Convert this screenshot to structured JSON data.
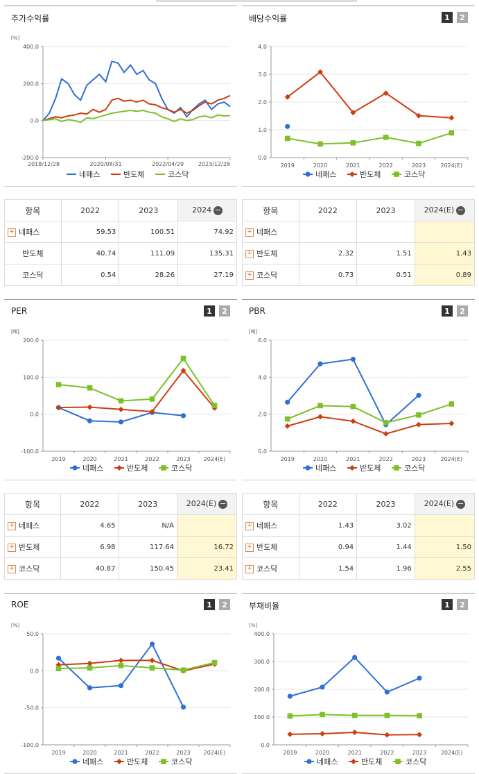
{
  "series_names": [
    "네패스",
    "반도체",
    "코스닥"
  ],
  "colors": {
    "s0": "#2f6fd6",
    "s1": "#cc3d10",
    "s2": "#7cc02a"
  },
  "pager": {
    "p1": "1",
    "p2": "2"
  },
  "stock": {
    "title": "주가수익률",
    "chart_data": {
      "type": "line",
      "unit": "[%]",
      "yticks": [
        "400.0",
        "200.0",
        "0.0",
        "-200.0"
      ],
      "ylim": [
        -200,
        400
      ],
      "xticks": [
        "2018/12/28",
        "2020/08/31",
        "2022/04/29",
        "2023/12/28"
      ],
      "x": [
        "2018-12-28",
        "2019-02-28",
        "2019-04-30",
        "2019-06-28",
        "2019-08-30",
        "2019-10-31",
        "2019-12-30",
        "2020-02-28",
        "2020-04-29",
        "2020-06-30",
        "2020-08-31",
        "2020-10-30",
        "2020-12-30",
        "2021-02-26",
        "2021-04-30",
        "2021-06-30",
        "2021-08-31",
        "2021-10-29",
        "2021-12-30",
        "2022-02-28",
        "2022-04-29",
        "2022-06-30",
        "2022-08-31",
        "2022-10-31",
        "2022-12-29",
        "2023-02-28",
        "2023-04-28",
        "2023-06-30",
        "2023-08-31",
        "2023-10-31",
        "2023-12-28"
      ],
      "series": [
        {
          "name": "네패스",
          "values": [
            0,
            40,
            120,
            225,
            200,
            140,
            110,
            190,
            220,
            250,
            210,
            320,
            310,
            260,
            300,
            250,
            270,
            220,
            200,
            120,
            60,
            40,
            70,
            20,
            60,
            90,
            110,
            60,
            90,
            100,
            75
          ]
        },
        {
          "name": "반도체",
          "values": [
            0,
            10,
            20,
            15,
            25,
            30,
            40,
            35,
            60,
            45,
            60,
            110,
            120,
            105,
            110,
            100,
            110,
            90,
            85,
            70,
            60,
            45,
            60,
            40,
            55,
            80,
            100,
            90,
            110,
            120,
            135
          ]
        },
        {
          "name": "코스닥",
          "values": [
            0,
            5,
            10,
            -5,
            5,
            0,
            -10,
            15,
            10,
            20,
            30,
            40,
            45,
            50,
            55,
            50,
            55,
            45,
            40,
            20,
            10,
            -5,
            10,
            0,
            5,
            20,
            25,
            15,
            30,
            25,
            27
          ]
        }
      ]
    }
  },
  "dividend": {
    "title": "배당수익률",
    "chart_data": {
      "type": "line",
      "ylim": [
        0,
        4
      ],
      "yticks": [
        "4.0",
        "3.0",
        "2.0",
        "1.0",
        "0.0"
      ],
      "categories": [
        "2019",
        "2020",
        "2021",
        "2022",
        "2023",
        "2024(E)"
      ],
      "series": [
        {
          "name": "네패스",
          "values": [
            1.12,
            null,
            null,
            null,
            null,
            null
          ]
        },
        {
          "name": "반도체",
          "values": [
            2.18,
            3.08,
            1.62,
            2.32,
            1.51,
            1.43
          ]
        },
        {
          "name": "코스닥",
          "values": [
            0.69,
            0.49,
            0.53,
            0.73,
            0.51,
            0.89
          ]
        }
      ]
    }
  },
  "stock_table": {
    "headers": [
      "항목",
      "2022",
      "2023",
      "2024"
    ],
    "rows": [
      {
        "label": "네패스",
        "plus": true,
        "cells": [
          "59.53",
          "100.51",
          "74.92"
        ]
      },
      {
        "label": "반도체",
        "plus": false,
        "cells": [
          "40.74",
          "111.09",
          "135.31"
        ]
      },
      {
        "label": "코스닥",
        "plus": false,
        "cells": [
          "0.54",
          "28.26",
          "27.19"
        ]
      }
    ]
  },
  "dividend_table": {
    "headers": [
      "항목",
      "2022",
      "2023",
      "2024(E)"
    ],
    "rows": [
      {
        "label": "네패스",
        "plus": true,
        "cells": [
          "",
          "",
          ""
        ]
      },
      {
        "label": "반도체",
        "plus": true,
        "cells": [
          "2.32",
          "1.51",
          "1.43"
        ]
      },
      {
        "label": "코스닥",
        "plus": true,
        "cells": [
          "0.73",
          "0.51",
          "0.89"
        ]
      }
    ]
  },
  "per": {
    "title": "PER",
    "chart_data": {
      "type": "line",
      "unit": "[배]",
      "ylim": [
        -100,
        200
      ],
      "yticks": [
        "200.0",
        "100.0",
        "0.0",
        "-100.0"
      ],
      "categories": [
        "2019",
        "2020",
        "2021",
        "2022",
        "2023",
        "2024(E)"
      ],
      "series": [
        {
          "name": "네패스",
          "values": [
            18,
            -18,
            -21,
            4.65,
            -4,
            null
          ]
        },
        {
          "name": "반도체",
          "values": [
            18,
            19,
            13,
            6.98,
            117.64,
            16.72
          ]
        },
        {
          "name": "코스닥",
          "values": [
            80,
            71,
            36,
            40.87,
            150.45,
            23.41
          ]
        }
      ]
    }
  },
  "pbr": {
    "title": "PBR",
    "chart_data": {
      "type": "line",
      "unit": "[배]",
      "ylim": [
        0,
        6
      ],
      "yticks": [
        "6.0",
        "4.0",
        "2.0",
        "0.0"
      ],
      "categories": [
        "2019",
        "2020",
        "2021",
        "2022",
        "2023",
        "2024(E)"
      ],
      "series": [
        {
          "name": "네패스",
          "values": [
            2.65,
            4.72,
            4.97,
            1.43,
            3.02,
            null
          ]
        },
        {
          "name": "반도체",
          "values": [
            1.36,
            1.86,
            1.62,
            0.94,
            1.44,
            1.5
          ]
        },
        {
          "name": "코스닥",
          "values": [
            1.74,
            2.46,
            2.41,
            1.54,
            1.96,
            2.55
          ]
        }
      ]
    }
  },
  "per_table": {
    "headers": [
      "항목",
      "2022",
      "2023",
      "2024(E)"
    ],
    "rows": [
      {
        "label": "네패스",
        "plus": true,
        "cells": [
          "4.65",
          "N/A",
          ""
        ]
      },
      {
        "label": "반도체",
        "plus": true,
        "cells": [
          "6.98",
          "117.64",
          "16.72"
        ]
      },
      {
        "label": "코스닥",
        "plus": true,
        "cells": [
          "40.87",
          "150.45",
          "23.41"
        ]
      }
    ]
  },
  "pbr_table": {
    "headers": [
      "항목",
      "2022",
      "2023",
      "2024(E)"
    ],
    "rows": [
      {
        "label": "네패스",
        "plus": true,
        "cells": [
          "1.43",
          "3.02",
          ""
        ]
      },
      {
        "label": "반도체",
        "plus": true,
        "cells": [
          "0.94",
          "1.44",
          "1.50"
        ]
      },
      {
        "label": "코스닥",
        "plus": true,
        "cells": [
          "1.54",
          "1.96",
          "2.55"
        ]
      }
    ]
  },
  "roe": {
    "title": "ROE",
    "chart_data": {
      "type": "line",
      "unit": "[%]",
      "ylim": [
        -100,
        50
      ],
      "yticks": [
        "50.0",
        "0.0",
        "-50.0",
        "-100.0"
      ],
      "categories": [
        "2019",
        "2020",
        "2021",
        "2022",
        "2023",
        "2024(E)"
      ],
      "series": [
        {
          "name": "네패스",
          "values": [
            17,
            -23,
            -20,
            36,
            -49,
            null
          ]
        },
        {
          "name": "반도체",
          "values": [
            8,
            10,
            14,
            14,
            0,
            9
          ]
        },
        {
          "name": "코스닥",
          "values": [
            3,
            4,
            7,
            4,
            1,
            11
          ]
        }
      ]
    }
  },
  "debt": {
    "title": "부채비율",
    "chart_data": {
      "type": "line",
      "unit": "[%]",
      "ylim": [
        0,
        400
      ],
      "yticks": [
        "400.0",
        "300.0",
        "200.0",
        "100.0",
        "0.0"
      ],
      "categories": [
        "2019",
        "2020",
        "2021",
        "2022",
        "2023",
        "2024(E)"
      ],
      "series": [
        {
          "name": "네패스",
          "values": [
            175,
            208,
            315,
            190,
            240,
            null
          ]
        },
        {
          "name": "반도체",
          "values": [
            38,
            40,
            45,
            36,
            37,
            null
          ]
        },
        {
          "name": "코스닥",
          "values": [
            104,
            109,
            106,
            106,
            105,
            null
          ]
        }
      ]
    }
  }
}
